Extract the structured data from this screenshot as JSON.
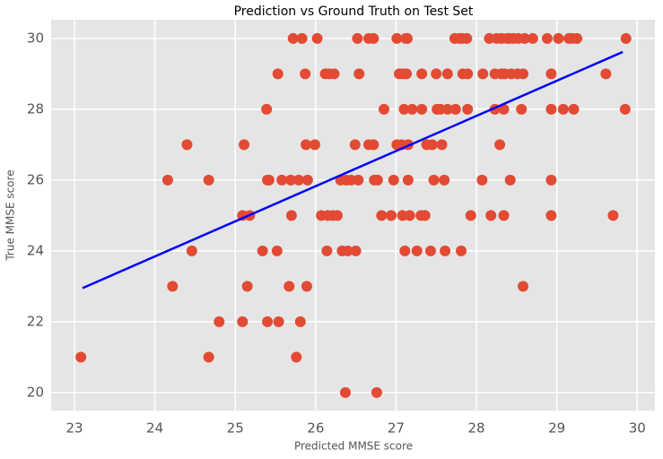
{
  "chart_data": {
    "type": "scatter",
    "title": "Prediction vs Ground Truth on Test Set",
    "x_label": "Predicted MMSE score",
    "y_label": "True MMSE score",
    "color": "#e24a33",
    "x": [
      25.72,
      25.83,
      26.02,
      26.52,
      26.66,
      26.72,
      27.01,
      27.12,
      27.14,
      27.73,
      27.79,
      27.82,
      27.88,
      28.16,
      28.25,
      28.31,
      28.38,
      28.41,
      28.46,
      28.52,
      28.6,
      28.7,
      28.88,
      29.02,
      29.15,
      29.19,
      29.25,
      29.86,
      25.53,
      25.87,
      26.12,
      26.17,
      26.23,
      26.54,
      27.04,
      27.09,
      27.13,
      27.32,
      27.5,
      27.64,
      27.83,
      27.89,
      28.08,
      28.23,
      28.31,
      28.35,
      28.43,
      28.51,
      28.58,
      28.93,
      29.61,
      25.39,
      26.85,
      27.1,
      27.2,
      27.32,
      27.51,
      27.55,
      27.64,
      27.74,
      27.89,
      28.23,
      28.34,
      28.56,
      28.93,
      29.08,
      29.21,
      29.85,
      24.4,
      25.11,
      25.88,
      25.99,
      26.49,
      26.66,
      26.72,
      27.01,
      27.07,
      27.15,
      27.38,
      27.45,
      27.57,
      28.29,
      24.16,
      24.67,
      25.4,
      25.42,
      25.58,
      25.69,
      25.79,
      25.9,
      26.31,
      26.38,
      26.44,
      26.53,
      26.73,
      26.77,
      26.97,
      27.15,
      27.47,
      27.6,
      28.07,
      28.42,
      28.93,
      25.09,
      25.18,
      25.7,
      26.07,
      26.15,
      26.21,
      26.27,
      26.82,
      26.94,
      27.08,
      27.17,
      27.31,
      27.36,
      27.93,
      28.18,
      28.34,
      28.93,
      29.7,
      24.46,
      25.34,
      25.52,
      26.14,
      26.33,
      26.4,
      26.5,
      27.11,
      27.26,
      27.43,
      27.61,
      27.81,
      24.22,
      25.15,
      25.67,
      25.89,
      28.58,
      24.8,
      25.09,
      25.4,
      25.54,
      25.81,
      23.08,
      24.67,
      25.76,
      26.37,
      26.76
    ],
    "values": [
      30,
      30,
      30,
      30,
      30,
      30,
      30,
      30,
      30,
      30,
      30,
      30,
      30,
      30,
      30,
      30,
      30,
      30,
      30,
      30,
      30,
      30,
      30,
      30,
      30,
      30,
      30,
      30,
      29,
      29,
      29,
      29,
      29,
      29,
      29,
      29,
      29,
      29,
      29,
      29,
      29,
      29,
      29,
      29,
      29,
      29,
      29,
      29,
      29,
      29,
      29,
      28,
      28,
      28,
      28,
      28,
      28,
      28,
      28,
      28,
      28,
      28,
      28,
      28,
      28,
      28,
      28,
      28,
      27,
      27,
      27,
      27,
      27,
      27,
      27,
      27,
      27,
      27,
      27,
      27,
      27,
      27,
      26,
      26,
      26,
      26,
      26,
      26,
      26,
      26,
      26,
      26,
      26,
      26,
      26,
      26,
      26,
      26,
      26,
      26,
      26,
      26,
      26,
      25,
      25,
      25,
      25,
      25,
      25,
      25,
      25,
      25,
      25,
      25,
      25,
      25,
      25,
      25,
      25,
      25,
      25,
      24,
      24,
      24,
      24,
      24,
      24,
      24,
      24,
      24,
      24,
      24,
      24,
      23,
      23,
      23,
      23,
      23,
      22,
      22,
      22,
      22,
      22,
      21,
      21,
      21,
      20,
      20
    ],
    "fit": {
      "x": [
        23.1,
        29.82
      ],
      "values": [
        22.95,
        29.62
      ],
      "color": "#0000ff"
    },
    "xlim": [
      22.71,
      30.22
    ],
    "xticks": [
      23,
      24,
      25,
      26,
      27,
      28,
      29,
      30
    ],
    "ylim": [
      19.49,
      30.53
    ],
    "yticks": [
      20,
      22,
      24,
      26,
      28,
      30
    ],
    "grid": true
  }
}
